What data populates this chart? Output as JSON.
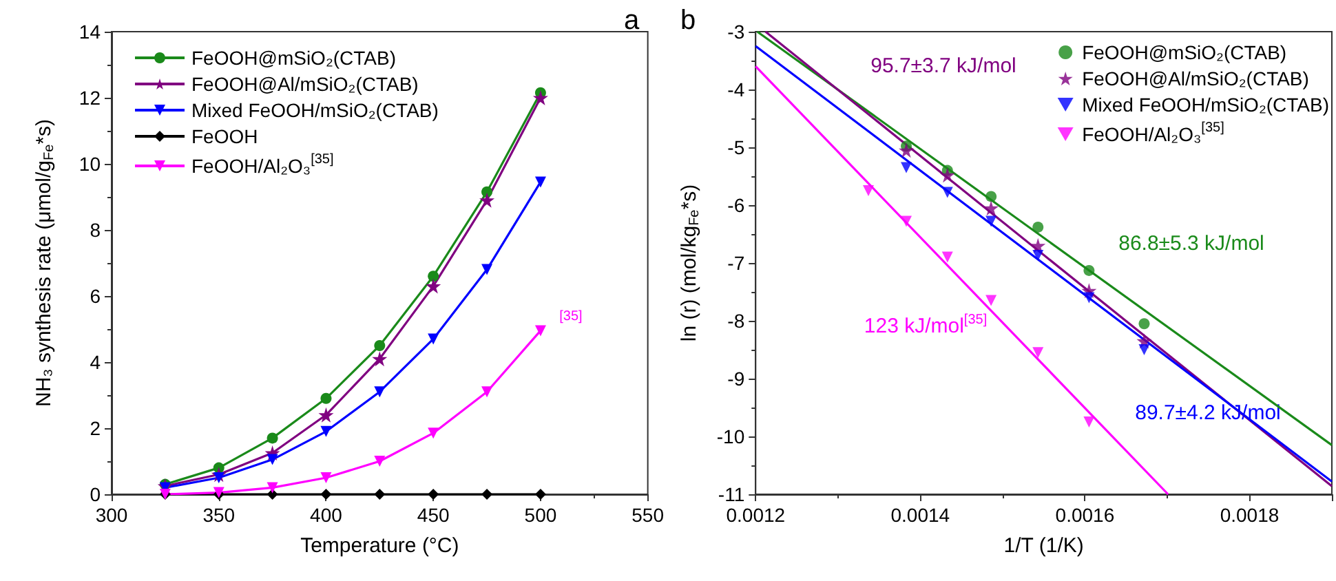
{
  "chart_data": [
    {
      "type": "line",
      "title": "a",
      "xlabel": "Temperature (°C)",
      "ylabel": "NH₃ synthesis rate (μmol/g$_{Fe}$*s)",
      "x": [
        325,
        350,
        375,
        400,
        425,
        450,
        475,
        500
      ],
      "xlim": [
        300,
        550
      ],
      "xticks": [
        300,
        350,
        400,
        450,
        500,
        550
      ],
      "ylim": [
        0,
        14
      ],
      "yticks": [
        0,
        2,
        4,
        6,
        8,
        10,
        12,
        14
      ],
      "grid": false,
      "legend": "top left",
      "line_style": "solid",
      "series": [
        {
          "name": "FeOOH@mSiO₂(CTAB)",
          "color": "#1a8a1a",
          "marker": "circle",
          "values": [
            0.3,
            0.8,
            1.7,
            2.9,
            4.5,
            6.6,
            9.15,
            12.15
          ]
        },
        {
          "name": "FeOOH@Al/mSiO₂(CTAB)",
          "color": "#800080",
          "marker": "star",
          "values": [
            0.25,
            0.6,
            1.25,
            2.4,
            4.1,
            6.3,
            8.9,
            12.0
          ]
        },
        {
          "name": "Mixed FeOOH/mSiO₂(CTAB)",
          "color": "#0000ff",
          "marker": "triangle",
          "values": [
            0.2,
            0.5,
            1.05,
            1.9,
            3.1,
            4.7,
            6.8,
            9.45
          ]
        },
        {
          "name": "FeOOH",
          "color": "#000000",
          "marker": "diamond",
          "values": [
            0,
            0,
            0,
            0,
            0,
            0,
            0,
            0
          ]
        },
        {
          "name": "FeOOH/Al₂O₃$^{[35]}$",
          "color": "#ff00ff",
          "marker": "triangle",
          "values": [
            0.0,
            0.05,
            0.2,
            0.5,
            1.0,
            1.85,
            3.1,
            4.95
          ]
        }
      ],
      "annotations": [
        {
          "text": "[35]",
          "x": 500,
          "y": 4.95
        }
      ]
    },
    {
      "type": "scatter",
      "title": "b",
      "xlabel": "1/T (1/K)",
      "ylabel": "ln (r) (mol/kg$_{Fe}$*s)",
      "xlim": [
        0.0012,
        0.0019
      ],
      "xticks": [
        0.0012,
        0.0014,
        0.0016,
        0.0018
      ],
      "ylim": [
        -11,
        -3
      ],
      "yticks": [
        -11,
        -10,
        -9,
        -8,
        -7,
        -6,
        -5,
        -4,
        -3
      ],
      "grid": false,
      "legend": "top right",
      "series": [
        {
          "name": "FeOOH@mSiO₂(CTAB)",
          "color": "#1a8a1a",
          "marker": "circle",
          "x": [
            0.001383,
            0.001433,
            0.001486,
            0.001543,
            0.001605,
            0.001672
          ],
          "values": [
            -4.98,
            -5.4,
            -5.85,
            -6.38,
            -7.13,
            -8.05
          ]
        },
        {
          "name": "FeOOH@Al/mSiO₂(CTAB)",
          "color": "#800080",
          "marker": "star",
          "x": [
            0.001383,
            0.001433,
            0.001486,
            0.001543,
            0.001605,
            0.001672
          ],
          "values": [
            -5.05,
            -5.48,
            -6.05,
            -6.7,
            -7.48,
            -8.35
          ]
        },
        {
          "name": "Mixed FeOOH/mSiO₂(CTAB)",
          "color": "#0000ff",
          "marker": "triangle",
          "x": [
            0.001383,
            0.001433,
            0.001486,
            0.001543,
            0.001605,
            0.001672
          ],
          "values": [
            -5.35,
            -5.78,
            -6.28,
            -6.87,
            -7.6,
            -8.5
          ]
        },
        {
          "name": "FeOOH/Al₂O₃$^{[35]}$",
          "color": "#ff00ff",
          "marker": "triangle",
          "x": [
            0.001337,
            0.001383,
            0.001433,
            0.001486,
            0.001543,
            0.001605
          ],
          "values": [
            -5.75,
            -6.28,
            -6.9,
            -7.65,
            -8.55,
            -9.75
          ]
        },
        {
          "type": "line",
          "color": "#1a8a1a",
          "marker": "none",
          "x": [
            0.001202,
            0.0019
          ],
          "values": [
            -3.0,
            -10.15
          ]
        },
        {
          "type": "line",
          "color": "#800080",
          "marker": "none",
          "x": [
            0.001212,
            0.0019
          ],
          "values": [
            -3.0,
            -10.86
          ]
        },
        {
          "type": "line",
          "color": "#0000ff",
          "marker": "none",
          "x": [
            0.0012,
            0.0019
          ],
          "values": [
            -3.25,
            -10.78
          ]
        },
        {
          "type": "line",
          "color": "#ff00ff",
          "marker": "none",
          "x": [
            0.0012,
            0.001701
          ],
          "values": [
            -3.6,
            -11.0
          ]
        }
      ],
      "annotations": [
        "86.8±5.3 kJ/mol",
        "95.7±3.7 kJ/mol",
        "89.7±4.2 kJ/mol",
        "123 kJ/mol$^{[35]}$"
      ]
    }
  ]
}
